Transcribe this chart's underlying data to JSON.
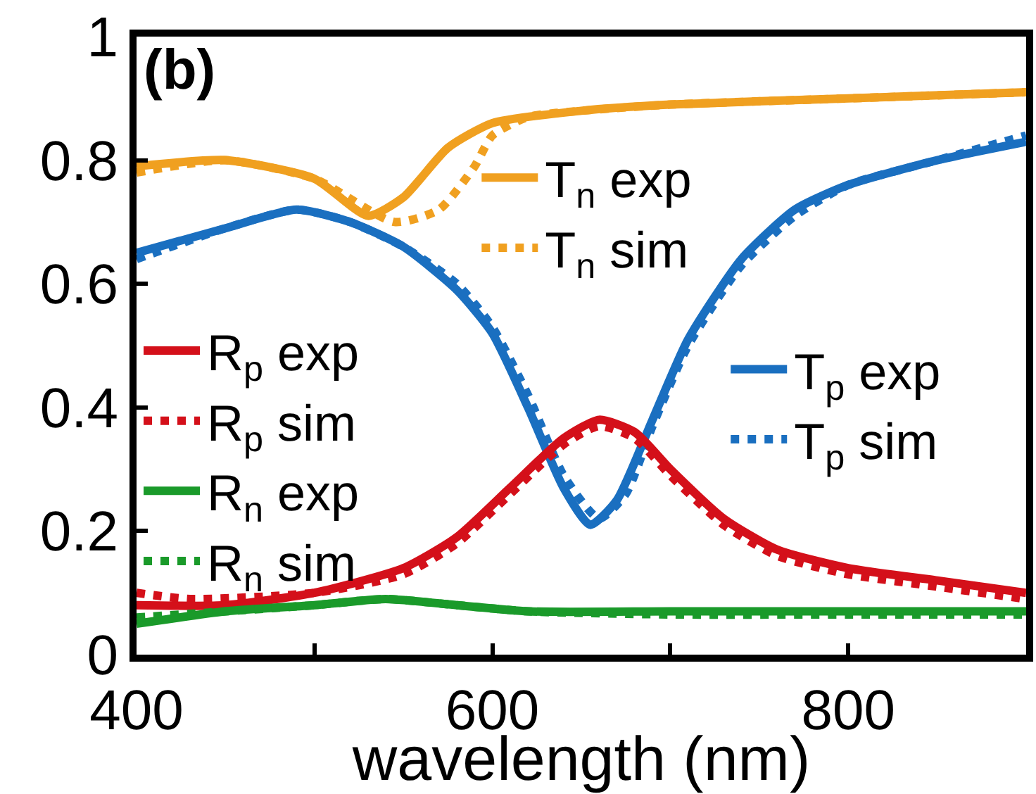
{
  "chart_data": {
    "type": "line",
    "xlabel": "wavelength (nm)",
    "annotations": [
      "(b)"
    ],
    "xlim": [
      400,
      900
    ],
    "xticks": [
      400,
      {
        "value": 500,
        "label": null
      },
      600,
      {
        "value": 700,
        "label": null
      },
      800
    ],
    "ylim": [
      0,
      1
    ],
    "yticks": [
      0,
      0.2,
      0.4,
      0.6,
      0.8,
      1
    ],
    "legend": "left",
    "marker": "none",
    "series": [
      {
        "name": "T$_{n}$ exp",
        "color": "#f0a020",
        "line_style": "solid",
        "x": [
          400,
          450,
          500,
          530,
          550,
          575,
          600,
          650,
          700,
          800,
          900
        ],
        "values": [
          0.79,
          0.8,
          0.77,
          0.71,
          0.74,
          0.82,
          0.86,
          0.88,
          0.89,
          0.9,
          0.91
        ]
      },
      {
        "name": "T$_{n}$ sim",
        "color": "#f0a020",
        "line_style": "dotted",
        "x": [
          400,
          450,
          500,
          545,
          570,
          590,
          600,
          620,
          650,
          700,
          800,
          900
        ],
        "values": [
          0.78,
          0.8,
          0.77,
          0.7,
          0.72,
          0.79,
          0.84,
          0.87,
          0.88,
          0.89,
          0.9,
          0.91
        ]
      },
      {
        "name": "T$_{p}$ exp",
        "color": "#1a6fc0",
        "line_style": "solid",
        "x": [
          400,
          450,
          490,
          520,
          550,
          580,
          600,
          620,
          640,
          655,
          670,
          690,
          710,
          740,
          770,
          800,
          850,
          900
        ],
        "values": [
          0.65,
          0.69,
          0.72,
          0.7,
          0.66,
          0.59,
          0.52,
          0.4,
          0.27,
          0.21,
          0.25,
          0.38,
          0.51,
          0.64,
          0.72,
          0.76,
          0.8,
          0.83
        ]
      },
      {
        "name": "T$_{p}$ sim",
        "color": "#1a6fc0",
        "line_style": "dotted",
        "x": [
          400,
          450,
          490,
          520,
          550,
          580,
          600,
          620,
          640,
          660,
          675,
          690,
          710,
          740,
          770,
          800,
          850,
          900
        ],
        "values": [
          0.64,
          0.69,
          0.72,
          0.7,
          0.66,
          0.6,
          0.53,
          0.42,
          0.29,
          0.22,
          0.26,
          0.37,
          0.5,
          0.63,
          0.71,
          0.76,
          0.8,
          0.84
        ]
      },
      {
        "name": "R$_{p}$ exp",
        "color": "#d4101a",
        "line_style": "solid",
        "x": [
          400,
          450,
          500,
          550,
          580,
          610,
          640,
          660,
          680,
          700,
          730,
          760,
          800,
          850,
          900
        ],
        "values": [
          0.08,
          0.08,
          0.1,
          0.14,
          0.19,
          0.27,
          0.35,
          0.38,
          0.36,
          0.3,
          0.22,
          0.17,
          0.14,
          0.12,
          0.1
        ]
      },
      {
        "name": "R$_{p}$ sim",
        "color": "#d4101a",
        "line_style": "dotted",
        "x": [
          400,
          430,
          500,
          550,
          580,
          610,
          640,
          660,
          680,
          700,
          730,
          760,
          800,
          850,
          900
        ],
        "values": [
          0.1,
          0.09,
          0.1,
          0.13,
          0.18,
          0.26,
          0.34,
          0.37,
          0.35,
          0.29,
          0.21,
          0.16,
          0.13,
          0.11,
          0.09
        ]
      },
      {
        "name": "R$_{n}$ exp",
        "color": "#1a9a2a",
        "line_style": "solid",
        "x": [
          400,
          450,
          500,
          540,
          580,
          620,
          700,
          800,
          900
        ],
        "values": [
          0.05,
          0.07,
          0.08,
          0.09,
          0.08,
          0.07,
          0.07,
          0.07,
          0.07
        ]
      },
      {
        "name": "R$_{n}$ sim",
        "color": "#1a9a2a",
        "line_style": "dotted",
        "x": [
          400,
          450,
          500,
          540,
          580,
          620,
          700,
          800,
          900
        ],
        "values": [
          0.06,
          0.07,
          0.08,
          0.09,
          0.08,
          0.07,
          0.065,
          0.065,
          0.065
        ]
      }
    ]
  }
}
